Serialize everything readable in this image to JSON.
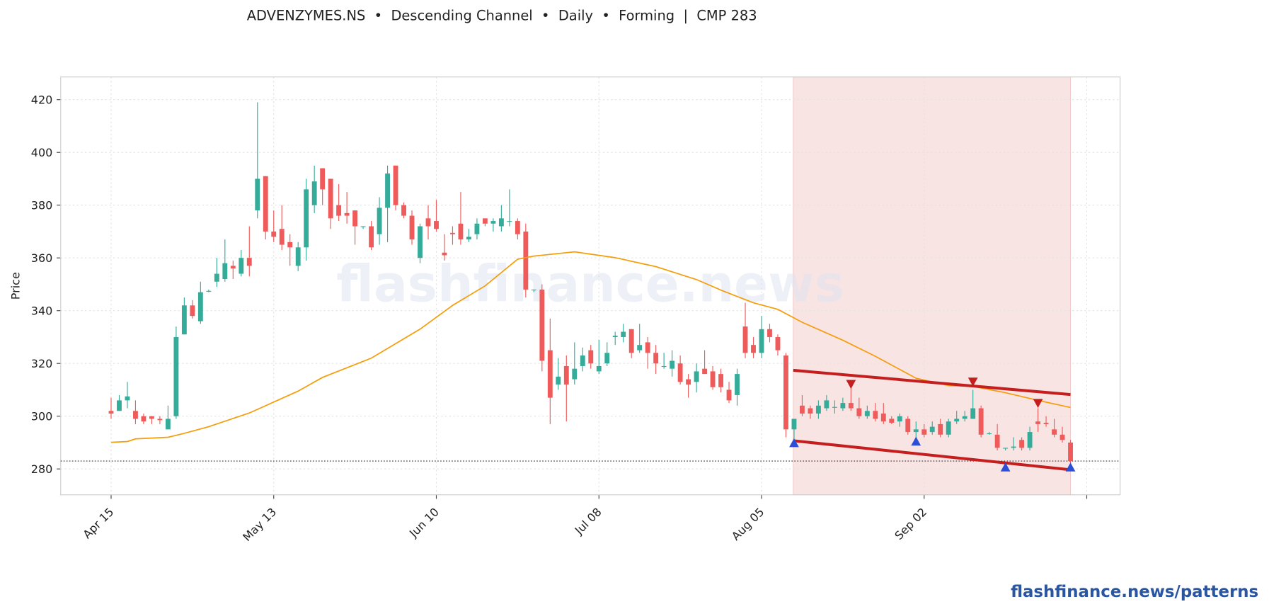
{
  "chart_data": {
    "type": "candlestick",
    "title": "ADVENZYMES.NS  •  Descending Channel  •  Daily  •  Forming  |  CMP 283",
    "y_label": "Price",
    "watermark": "flashfinance.news",
    "footer": "flashfinance.news/patterns",
    "ylim": [
      270.2,
      428.6
    ],
    "yticks": [
      280,
      300,
      320,
      340,
      360,
      380,
      400,
      420
    ],
    "xlim": [
      -6.2,
      124.1
    ],
    "xticks": [
      {
        "value": 0,
        "label": "Apr 15"
      },
      {
        "value": 20,
        "label": "May 13"
      },
      {
        "value": 40,
        "label": "Jun 10"
      },
      {
        "value": 60,
        "label": "Jul 08"
      },
      {
        "value": 80,
        "label": "Aug 05"
      },
      {
        "value": 100,
        "label": "Sep 02"
      },
      {
        "value": 120,
        "label": null
      }
    ],
    "grid": true,
    "up_color": "#35ac9a",
    "down_color": "#ef5b5b",
    "open": [
      302,
      302,
      306,
      302,
      300,
      300,
      299,
      295,
      300,
      331,
      342,
      336,
      347.5,
      351,
      352,
      357,
      354,
      360,
      378,
      391,
      370,
      371,
      366,
      357,
      364,
      380,
      394,
      390,
      380,
      377,
      378,
      372,
      372,
      369,
      379,
      395,
      380,
      376,
      360,
      375,
      374,
      362,
      369.5,
      373,
      367,
      369,
      375,
      373,
      372,
      374,
      374,
      370,
      348,
      348,
      325,
      312,
      319,
      314,
      319,
      325,
      317,
      320,
      330,
      330,
      333,
      325,
      328,
      324,
      319,
      318,
      320,
      314,
      313,
      318,
      317,
      316,
      310,
      308,
      334,
      327,
      324,
      333,
      330,
      323,
      295,
      304,
      303,
      301,
      303,
      303.5,
      303,
      305,
      303,
      300,
      302,
      301,
      299,
      298,
      299,
      294,
      295,
      294,
      297,
      293,
      298,
      299,
      299,
      303,
      293.5,
      293,
      288,
      288,
      291,
      288,
      298,
      297.5,
      295,
      293,
      290
    ],
    "high": [
      307,
      308,
      313,
      306,
      301,
      300,
      300,
      304,
      334,
      345,
      344,
      351,
      348,
      360,
      367,
      359,
      363,
      372,
      419,
      391,
      378,
      380,
      369,
      366,
      390,
      395,
      394,
      390,
      388,
      385,
      378,
      372,
      374,
      383,
      395,
      395,
      381,
      378,
      373,
      380,
      382,
      369,
      372,
      385,
      371,
      375,
      375,
      375,
      380,
      386,
      375,
      373,
      348,
      350,
      337,
      322,
      323,
      328,
      326,
      327,
      329,
      328,
      332,
      335,
      333,
      335,
      330,
      327,
      324,
      325,
      323,
      316,
      320,
      325,
      319,
      318,
      313,
      318,
      343,
      330,
      338,
      335,
      331,
      324,
      299,
      308,
      304,
      306,
      308,
      306,
      307,
      311,
      307,
      304,
      305,
      305,
      300,
      301,
      300,
      298,
      297,
      298,
      299,
      299,
      302,
      302,
      310,
      304,
      294,
      297,
      288,
      292,
      292,
      296,
      303,
      300,
      299,
      296,
      291
    ],
    "low": [
      299,
      302,
      303,
      297,
      297,
      297,
      297,
      295,
      299,
      331,
      337,
      335,
      347,
      349,
      351,
      352,
      353,
      353,
      375,
      367,
      366,
      363,
      357,
      355,
      359,
      377,
      380,
      371,
      374,
      373,
      365,
      371,
      363,
      365,
      366,
      378,
      375,
      365,
      358,
      367,
      370,
      359,
      365,
      365,
      366,
      367,
      372,
      370,
      370,
      372,
      367,
      345,
      347,
      317,
      297,
      310,
      298,
      312,
      317,
      318,
      316,
      319,
      327,
      328,
      322,
      324,
      318,
      316,
      318,
      315,
      312,
      307,
      309,
      316,
      310,
      309,
      305,
      304,
      322,
      322,
      322,
      328,
      323,
      292,
      290,
      300,
      299,
      299,
      302,
      301,
      302,
      302,
      299,
      299,
      298,
      297,
      297,
      296,
      293,
      291,
      292,
      293,
      292,
      292,
      297,
      298,
      299,
      292,
      293,
      287,
      287,
      287,
      287,
      287,
      294,
      296,
      292,
      290,
      282
    ],
    "close": [
      301,
      306,
      307.5,
      299,
      298,
      299,
      298.5,
      299,
      330,
      342,
      338,
      347,
      347.5,
      354,
      358,
      356,
      360,
      357,
      390,
      370,
      368,
      365,
      364,
      364,
      386,
      389,
      386,
      375,
      376,
      376,
      372,
      372,
      364,
      379,
      392,
      380,
      376,
      367,
      372,
      372,
      371,
      361,
      369,
      367,
      368,
      373,
      373,
      374,
      375,
      374,
      369,
      348,
      348,
      321,
      307,
      315,
      312,
      318,
      323,
      320,
      319,
      324,
      330.5,
      332,
      324,
      327,
      324,
      320,
      319,
      321,
      313,
      312,
      317,
      316,
      311,
      311,
      306,
      316,
      324,
      324,
      333,
      330,
      325,
      295,
      299,
      301,
      301,
      304,
      306,
      303.5,
      305,
      303,
      300,
      302,
      299,
      298,
      297.5,
      300,
      294,
      295,
      293,
      296,
      293,
      298,
      299,
      300,
      303,
      293,
      293.5,
      288,
      288,
      288.5,
      288,
      294,
      297,
      297,
      293,
      291,
      283
    ],
    "ma": {
      "color": "#f59d0b",
      "x": [
        0,
        2,
        3,
        7,
        9,
        12,
        17,
        23,
        26,
        32,
        38,
        42,
        46,
        50,
        52,
        57,
        62,
        67,
        72,
        75,
        79,
        82,
        85,
        90,
        94,
        99,
        103,
        106,
        110,
        114,
        118
      ],
      "values": [
        290.1,
        290.4,
        291.4,
        292,
        293.5,
        296,
        301.2,
        309.5,
        314.7,
        322,
        333,
        342,
        349.4,
        359.5,
        360.7,
        362.3,
        360.1,
        356.7,
        351.8,
        347.8,
        343,
        340.5,
        335.6,
        328.8,
        322.7,
        314.4,
        311.6,
        311.3,
        308.9,
        306,
        303.3
      ]
    },
    "zone": {
      "color": "#f9e4e4",
      "x": [
        83.9,
        118
      ]
    },
    "channel": {
      "color": "#c41e1e",
      "upper": {
        "x": [
          83.9,
          118
        ],
        "values": [
          317.4,
          308.2
        ]
      },
      "lower": {
        "x": [
          83.9,
          118
        ],
        "values": [
          290.7,
          279.7
        ]
      }
    },
    "cmp_level": 283,
    "peaks": {
      "color": "#c41e1e",
      "x": [
        91,
        106,
        114
      ],
      "values": [
        312.2,
        313.1,
        305
      ]
    },
    "troughs": {
      "color": "#2d4fd6",
      "x": [
        84,
        99,
        110,
        118
      ],
      "values": [
        289.8,
        290.4,
        280.6,
        280.6
      ]
    }
  }
}
